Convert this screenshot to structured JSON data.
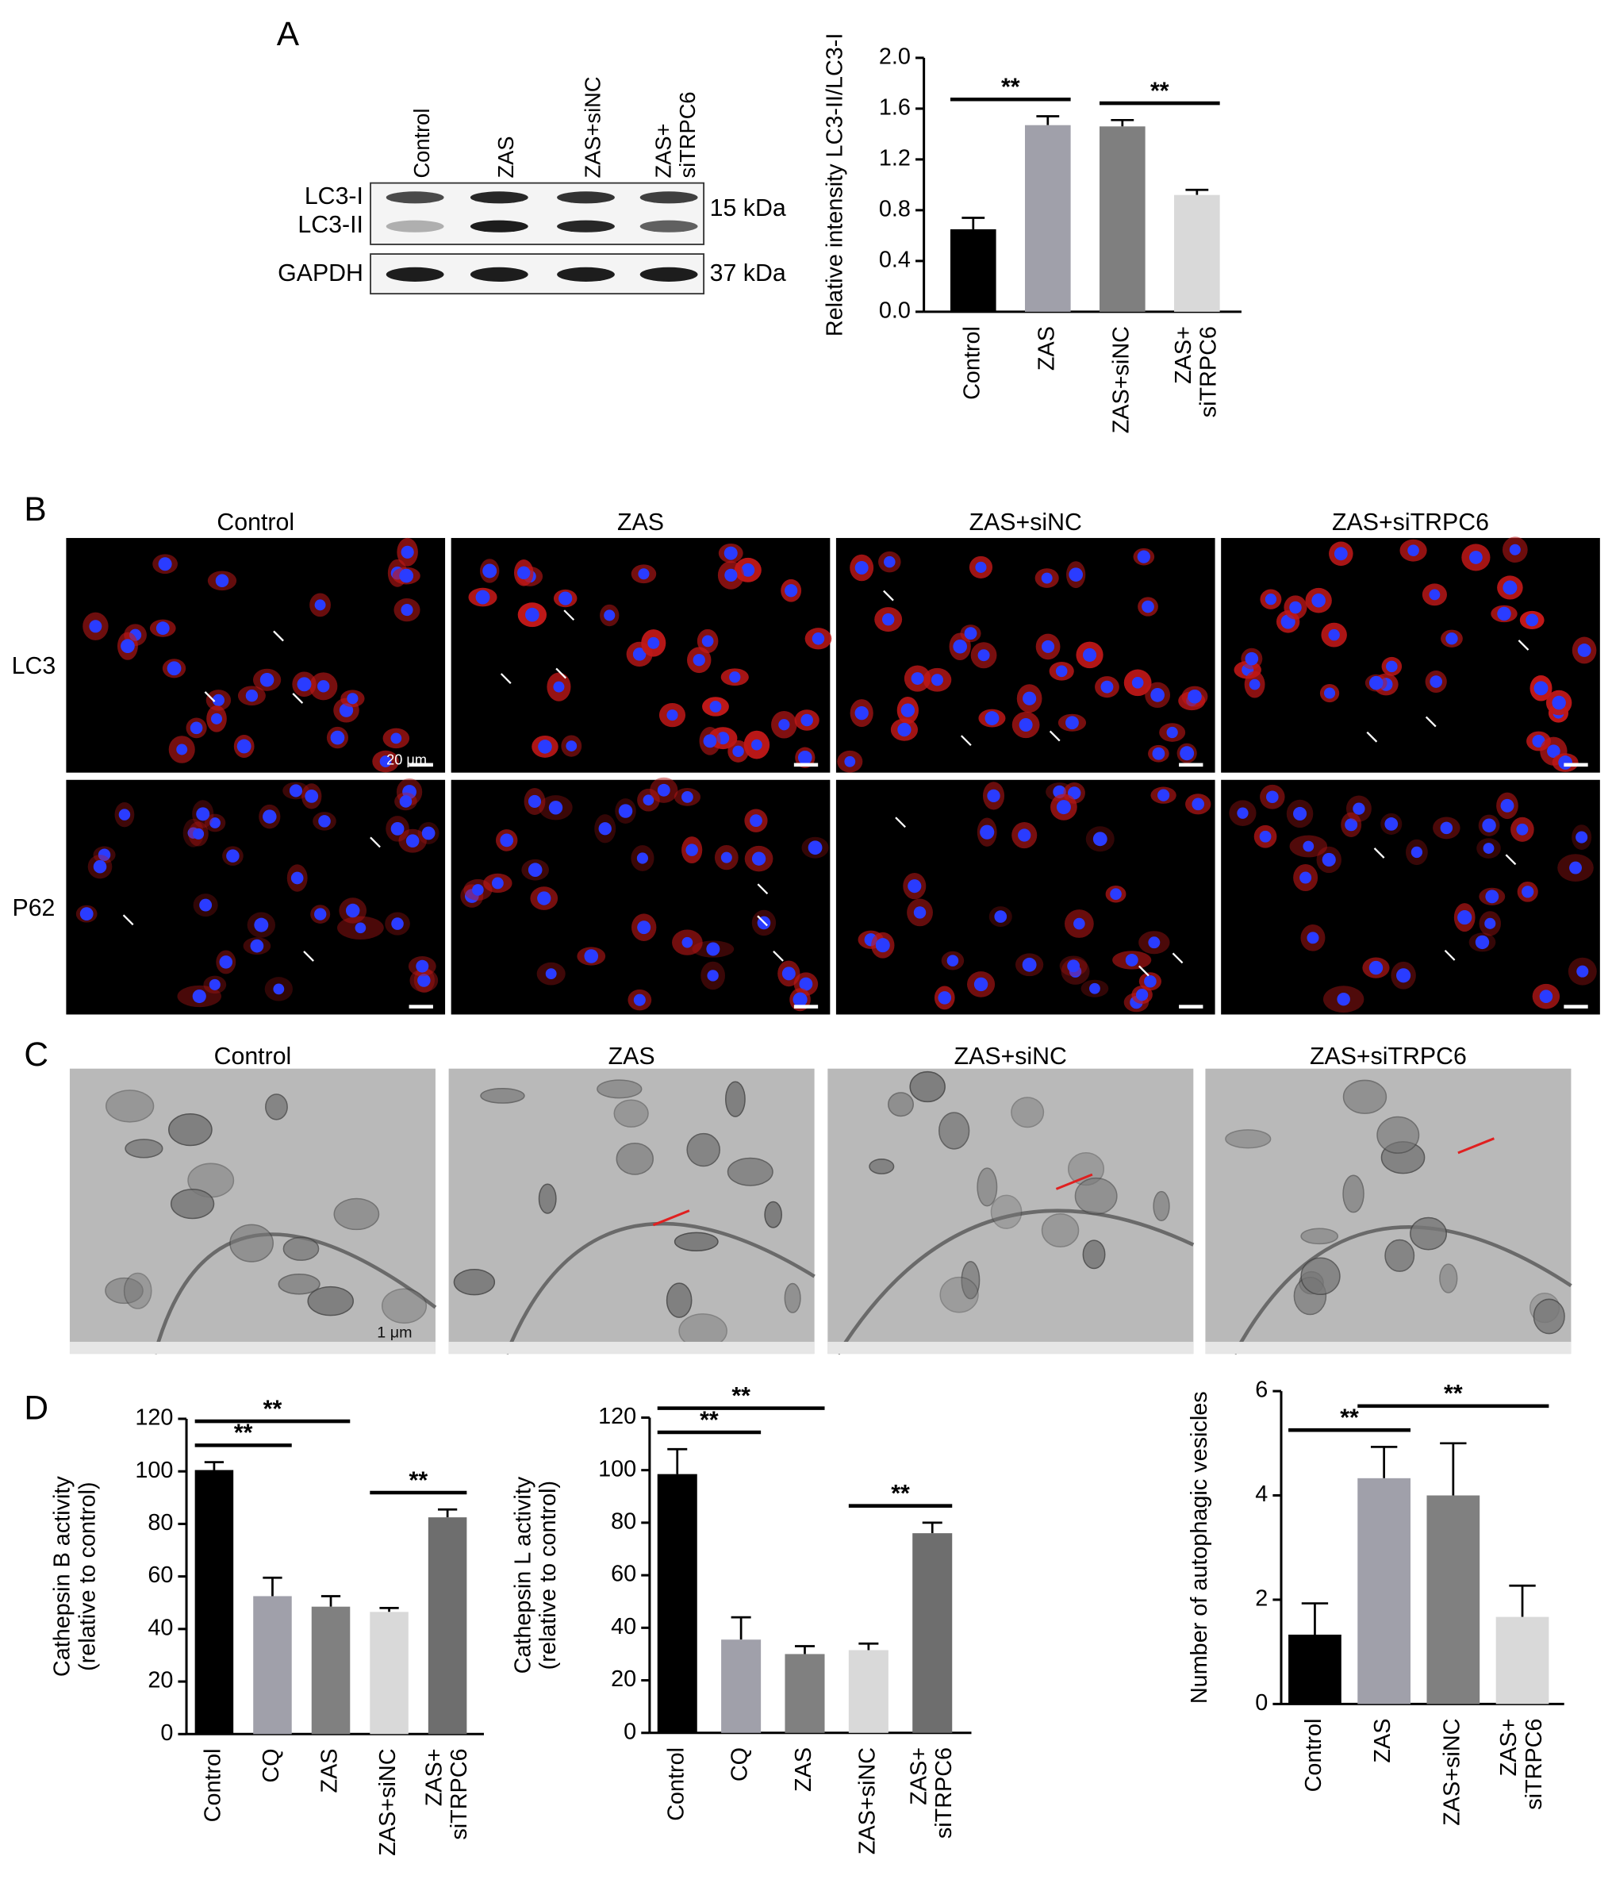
{
  "panel_labels": [
    "A",
    "B",
    "C",
    "D"
  ],
  "blot": {
    "lanes": [
      "Control",
      "ZAS",
      "ZAS+siNC",
      "ZAS+\nsiTRPC6"
    ],
    "bands": [
      "LC3-I",
      "LC3-II",
      "GAPDH"
    ],
    "sizes": [
      "15 kDa",
      "37 kDa"
    ]
  },
  "fluorescence": {
    "columns": [
      "Control",
      "ZAS",
      "ZAS+siNC",
      "ZAS+siTRPC6"
    ],
    "rows": [
      "LC3",
      "P62"
    ],
    "scale_bar": "20 μm"
  },
  "tem": {
    "columns": [
      "Control",
      "ZAS",
      "ZAS+siNC",
      "ZAS+siTRPC6"
    ],
    "scale_bar": "1 μm"
  },
  "chart_data": [
    {
      "type": "bar",
      "ylabel": "Relative intensity LC3-II/LC3-I",
      "categories": [
        "Control",
        "ZAS",
        "ZAS+siNC",
        "ZAS+\nsiTRPC6"
      ],
      "values": [
        0.65,
        1.47,
        1.46,
        0.92
      ],
      "errors": [
        0.09,
        0.07,
        0.05,
        0.04
      ],
      "colors": [
        "#000000",
        "#a0a0aa",
        "#7f7f7f",
        "#d9d9d9"
      ],
      "ylim": [
        0,
        2.0
      ],
      "yticks": [
        {
          "value": 0,
          "label": "0.0"
        },
        0.4,
        0.8,
        1.2,
        1.6,
        {
          "value": 2.0,
          "label": "2.0"
        }
      ],
      "annotations": [
        {
          "text": "**",
          "from": 0,
          "to": 1
        },
        {
          "text": "**",
          "from": 2,
          "to": 3
        }
      ]
    },
    {
      "type": "bar",
      "ylabel": "Cathepsin B activity\n(relative to control)",
      "categories": [
        "Control",
        "CQ",
        "ZAS",
        "ZAS+siNC",
        "ZAS+\nsiTRPC6"
      ],
      "values": [
        100.5,
        52.5,
        48.5,
        46.5,
        82.5
      ],
      "errors": [
        3,
        7,
        4,
        1.5,
        3
      ],
      "colors": [
        "#000000",
        "#a0a0aa",
        "#808080",
        "#d9d9d9",
        "#6e6e6e"
      ],
      "ylim": [
        0,
        120
      ],
      "yticks": [
        0,
        20,
        40,
        60,
        80,
        100,
        120
      ],
      "annotations": [
        {
          "text": "**",
          "from": 0,
          "to": 1
        },
        {
          "text": "**",
          "from": 0,
          "to": 2
        },
        {
          "text": "**",
          "from": 3,
          "to": 4
        }
      ]
    },
    {
      "type": "bar",
      "ylabel": "Cathepsin L activity\n(relative to control)",
      "categories": [
        "Control",
        "CQ",
        "ZAS",
        "ZAS+siNC",
        "ZAS+\nsiTRPC6"
      ],
      "values": [
        98.5,
        35.5,
        30,
        31.5,
        76
      ],
      "errors": [
        9.5,
        8.5,
        3,
        2.5,
        4
      ],
      "colors": [
        "#000000",
        "#a0a0aa",
        "#808080",
        "#d9d9d9",
        "#6e6e6e"
      ],
      "ylim": [
        0,
        120
      ],
      "yticks": [
        0,
        20,
        40,
        60,
        80,
        100,
        120
      ],
      "annotations": [
        {
          "text": "**",
          "from": 0,
          "to": 1
        },
        {
          "text": "**",
          "from": 0,
          "to": 2
        },
        {
          "text": "**",
          "from": 3,
          "to": 4
        }
      ]
    },
    {
      "type": "bar",
      "ylabel": "Number of autophagic vesicles",
      "categories": [
        "Control",
        "ZAS",
        "ZAS+siNC",
        "ZAS+\nsiTRPC6"
      ],
      "values": [
        1.33,
        4.33,
        4.0,
        1.67
      ],
      "errors": [
        0.6,
        0.6,
        1.0,
        0.6
      ],
      "colors": [
        "#000000",
        "#a0a0aa",
        "#808080",
        "#d9d9d9"
      ],
      "ylim": [
        0,
        6
      ],
      "yticks": [
        0,
        2,
        4,
        6
      ],
      "annotations": [
        {
          "text": "**",
          "from": 0,
          "to": 1
        },
        {
          "text": "**",
          "from": 1,
          "to": 3
        }
      ]
    }
  ]
}
